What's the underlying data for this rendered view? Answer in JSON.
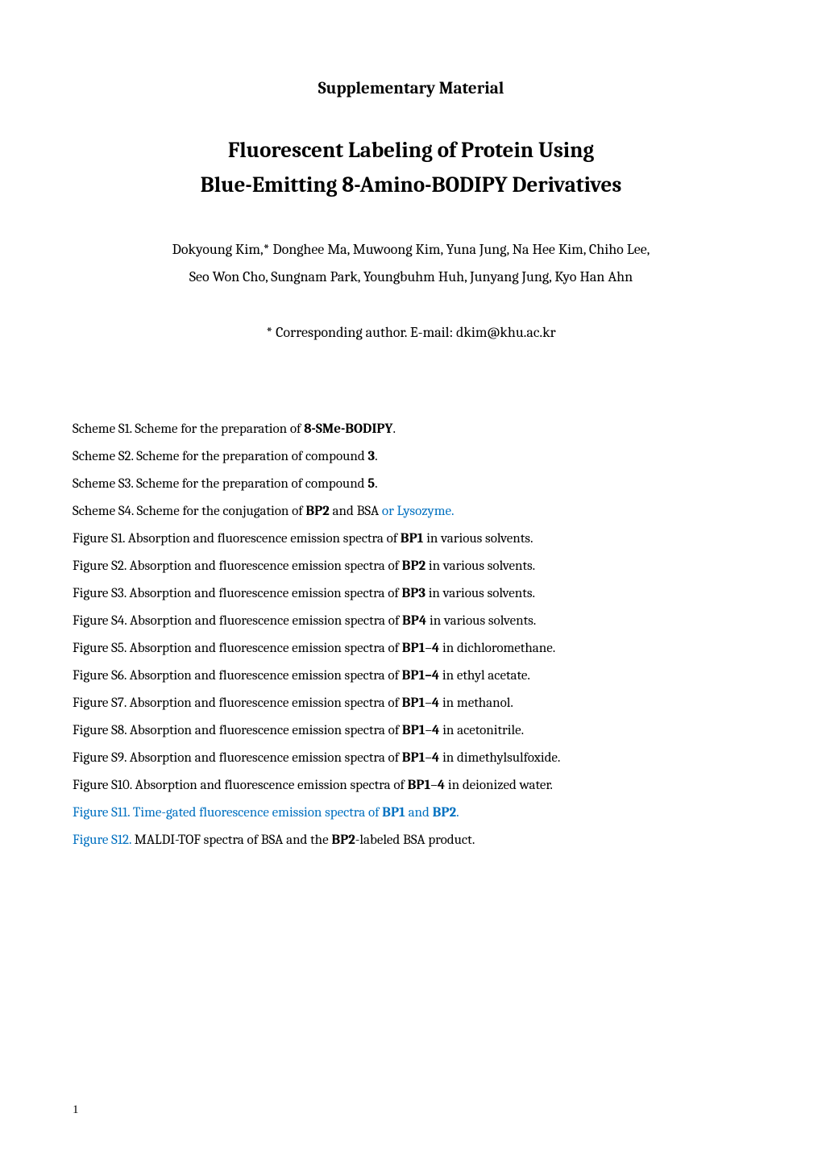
{
  "header": {
    "supplementary_label": "Supplementary Material",
    "title_line1": "Fluorescent Labeling of Protein Using",
    "title_line2": "Blue-Emitting 8-Amino-BODIPY Derivatives",
    "authors_line1": "Dokyoung Kim,* Donghee Ma, Muwoong Kim, Yuna Jung, Na Hee Kim, Chiho Lee,",
    "authors_line2": "Seo Won Cho, Sungnam Park, Youngbuhm Huh, Junyang Jung, Kyo Han Ahn",
    "corresponding": "* Corresponding author. E-mail: dkim@khu.ac.kr"
  },
  "contents": {
    "items": [
      {
        "prefix": "Scheme S1. Scheme for the preparation of ",
        "bold": "8-SMe-BODIPY",
        "suffix": ".",
        "prefix_blue": false,
        "suffix_blue": false
      },
      {
        "prefix": "Scheme S2. Scheme for the preparation of compound ",
        "bold": "3",
        "suffix": ".",
        "prefix_blue": false,
        "suffix_blue": false
      },
      {
        "prefix": "Scheme S3. Scheme for the preparation of compound ",
        "bold": "5",
        "suffix": ".",
        "prefix_blue": false,
        "suffix_blue": false
      },
      {
        "prefix": "Scheme S4. Scheme for the conjugation of ",
        "bold": "BP2",
        "suffix": " and BSA",
        "suffix2": " or Lysozyme.",
        "prefix_blue": false,
        "suffix_blue": false,
        "suffix2_blue": true
      },
      {
        "prefix": "Figure S1. Absorption and fluorescence emission spectra of ",
        "bold": "BP1",
        "suffix": " in various solvents.",
        "prefix_blue": false,
        "suffix_blue": false
      },
      {
        "prefix": "Figure S2. Absorption and fluorescence emission spectra of ",
        "bold": "BP2",
        "suffix": " in various solvents.",
        "prefix_blue": false,
        "suffix_blue": false
      },
      {
        "prefix": "Figure S3. Absorption and fluorescence emission spectra of ",
        "bold": "BP3",
        "suffix": " in various solvents.",
        "prefix_blue": false,
        "suffix_blue": false
      },
      {
        "prefix": "Figure S4. Absorption and fluorescence emission spectra of ",
        "bold": "BP4",
        "suffix": " in various solvents.",
        "prefix_blue": false,
        "suffix_blue": false
      },
      {
        "prefix": "Figure S5. Absorption and fluorescence emission spectra of ",
        "bold": "BP1",
        "mid": "–",
        "bold2": "4",
        "suffix": " in dichloromethane.",
        "prefix_blue": false,
        "suffix_blue": false
      },
      {
        "prefix": "Figure S6. Absorption and fluorescence emission spectra of ",
        "bold": "BP1–4",
        "suffix": " in ethyl acetate.",
        "prefix_blue": false,
        "suffix_blue": false
      },
      {
        "prefix": "Figure S7. Absorption and fluorescence emission spectra of ",
        "bold": "BP1",
        "mid": "–",
        "bold2": "4",
        "suffix": " in methanol.",
        "prefix_blue": false,
        "suffix_blue": false
      },
      {
        "prefix": "Figure S8. Absorption and fluorescence emission spectra of ",
        "bold": "BP1",
        "mid": "–",
        "bold2": "4",
        "suffix": " in acetonitrile.",
        "prefix_blue": false,
        "suffix_blue": false
      },
      {
        "prefix": "Figure S9. Absorption and fluorescence emission spectra of ",
        "bold": "BP1",
        "mid": "–",
        "bold2": "4",
        "suffix": " in dimethylsulfoxide.",
        "prefix_blue": false,
        "suffix_blue": false
      },
      {
        "prefix": "Figure S10. Absorption and fluorescence emission spectra of ",
        "bold": "BP1",
        "mid": "–",
        "bold2": "4",
        "suffix": " in deionized water.",
        "prefix_blue": false,
        "suffix_blue": false
      },
      {
        "prefix": "Figure S11. Time-gated fluorescence emission spectra of ",
        "bold": "BP1",
        "mid": " and ",
        "bold2": "BP2",
        "suffix": ".",
        "prefix_blue": true,
        "mid_blue": true,
        "suffix_blue": true,
        "all_blue": true
      },
      {
        "prefix": "Figure S12. ",
        "rest": "MALDI-TOF spectra of BSA and the ",
        "bold": "BP2",
        "suffix": "-labeled BSA product.",
        "prefix_blue": true,
        "suffix_blue": false
      }
    ]
  },
  "page_number": "1",
  "colors": {
    "text": "#000000",
    "blue": "#0070c0",
    "background": "#ffffff"
  },
  "typography": {
    "body_font": "Cambria, Georgia, serif",
    "title_fontsize": 27,
    "subtitle_fontsize": 21,
    "body_fontsize": 18,
    "contents_fontsize": 17
  }
}
